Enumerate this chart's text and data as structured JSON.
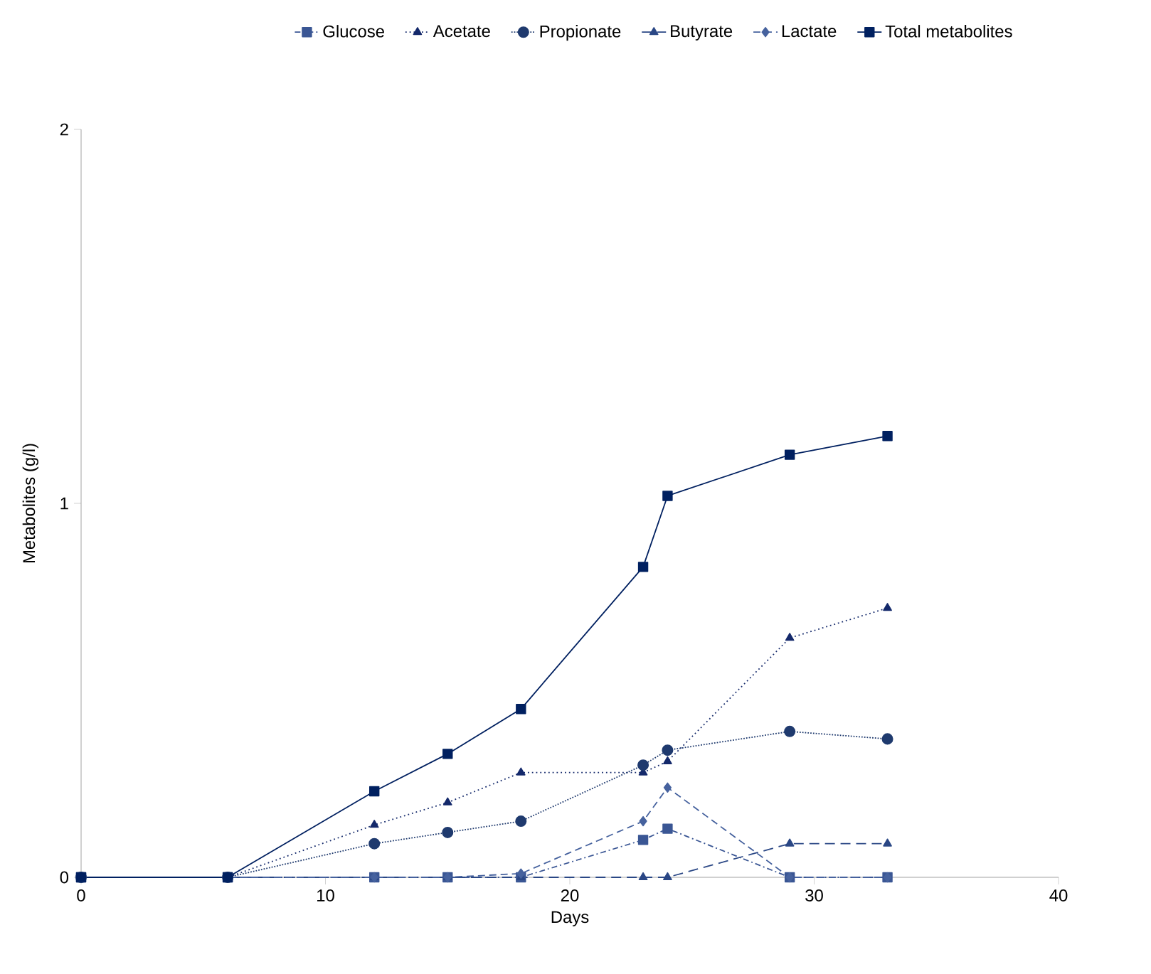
{
  "chart_data": {
    "type": "line",
    "xlabel": "Days",
    "ylabel": "Metabolites (g/l)",
    "x": [
      0,
      6,
      12,
      15,
      18,
      23,
      24,
      29,
      33
    ],
    "xlim": [
      0,
      40
    ],
    "xticks": [
      0,
      10,
      20,
      30,
      40
    ],
    "ylim": [
      0,
      2
    ],
    "yticks": [
      0,
      1,
      2
    ],
    "grid": false,
    "legend": "top",
    "series": [
      {
        "name": "Glucose",
        "color": "#3a5694",
        "marker": "square",
        "line_style": "dashdot",
        "values": [
          0,
          0,
          0,
          0,
          0,
          0.1,
          0.13,
          0,
          0
        ]
      },
      {
        "name": "Acetate",
        "color": "#14296b",
        "marker": "triangle",
        "line_style": "dotted",
        "values": [
          0,
          0,
          0.14,
          0.2,
          0.28,
          0.28,
          0.31,
          0.64,
          0.72
        ]
      },
      {
        "name": "Propionate",
        "color": "#1f3a6e",
        "marker": "circle",
        "line_style": "densely dotted",
        "values": [
          0,
          0,
          0.09,
          0.12,
          0.15,
          0.3,
          0.34,
          0.39,
          0.37
        ]
      },
      {
        "name": "Butyrate",
        "color": "#2a4785",
        "marker": "triangle",
        "line_style": "dashed",
        "values": [
          0,
          0,
          0,
          0,
          0,
          0,
          0,
          0.09,
          0.09
        ]
      },
      {
        "name": "Lactate",
        "color": "#46629e",
        "marker": "diamond",
        "line_style": "densely dashed",
        "values": [
          0,
          0,
          0,
          0,
          0.01,
          0.15,
          0.24,
          0,
          0
        ]
      },
      {
        "name": "Total metabolites",
        "color": "#002060",
        "marker": "square",
        "line_style": "solid",
        "values": [
          0,
          0,
          0.23,
          0.33,
          0.45,
          0.83,
          1.02,
          1.13,
          1.18
        ]
      }
    ]
  }
}
